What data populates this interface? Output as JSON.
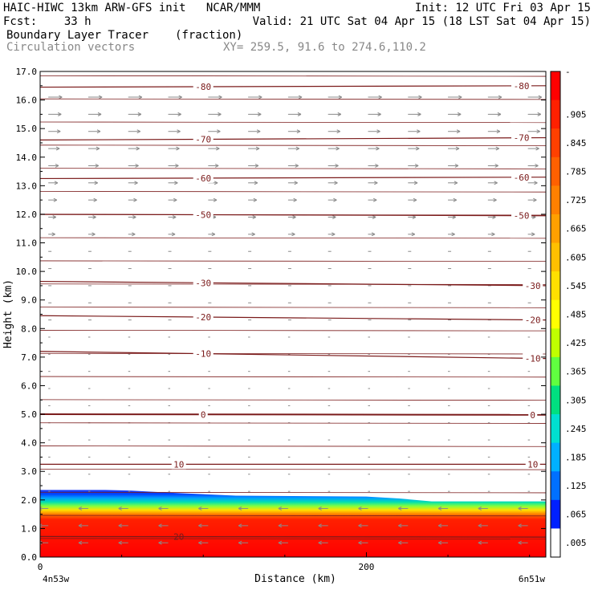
{
  "header": {
    "line1_left": "HAIC-HIWC 13km ARW-GFS init   NCAR/MMM",
    "line1_right": "Init: 12 UTC Fri 03 Apr 15",
    "line2_left": "Fcst:    33 h",
    "line2_right": "Valid: 21 UTC Sat 04 Apr 15 (18 LST Sat 04 Apr 15)",
    "field_name": "Boundary Layer Tracer",
    "field_units": "(fraction)",
    "vector_label": "Circulation vectors",
    "cross_section": "XY= 259.5, 91.6 to 274.6,110.2"
  },
  "chart_data": {
    "type": "heatmap",
    "xlabel": "Distance (km)",
    "ylabel": "Height (km)",
    "xlim": [
      0,
      310
    ],
    "ylim": [
      0,
      17
    ],
    "x_ticks": [
      {
        "value": 0,
        "label": "0"
      },
      {
        "value": 200,
        "label": "200"
      }
    ],
    "x_endpoint_labels": {
      "left": "4n53w",
      "right": "6n51w"
    },
    "y_ticks": [
      "0.0",
      "1.0",
      "2.0",
      "3.0",
      "4.0",
      "5.0",
      "6.0",
      "7.0",
      "8.0",
      "9.0",
      "10.0",
      "11.0",
      "12.0",
      "13.0",
      "14.0",
      "15.0",
      "16.0",
      "17.0"
    ],
    "colorbar": {
      "labels": [
        "-",
        ".905",
        ".845",
        ".785",
        ".725",
        ".665",
        ".605",
        ".545",
        ".485",
        ".425",
        ".365",
        ".305",
        ".245",
        ".185",
        ".125",
        ".065",
        ".005"
      ],
      "colors": [
        "#ff0000",
        "#ff2000",
        "#ff4000",
        "#ff6000",
        "#ff8000",
        "#ffa000",
        "#ffc000",
        "#ffe000",
        "#ffff00",
        "#c0ff00",
        "#60ff40",
        "#00e080",
        "#00e0d0",
        "#00b0ff",
        "#0070ff",
        "#0020ff",
        "#ffffff"
      ]
    },
    "tracer_top_km": [
      {
        "x": 0,
        "z": 2.35
      },
      {
        "x": 40,
        "z": 2.35
      },
      {
        "x": 55,
        "z": 2.33
      },
      {
        "x": 80,
        "z": 2.25
      },
      {
        "x": 120,
        "z": 2.15
      },
      {
        "x": 200,
        "z": 2.12
      },
      {
        "x": 220,
        "z": 2.05
      },
      {
        "x": 240,
        "z": 1.95
      },
      {
        "x": 310,
        "z": 1.95
      }
    ],
    "temperature_isotherms": [
      {
        "label": "-80",
        "z_left": 16.45,
        "z_right": 16.5,
        "label_x": [
          100,
          295
        ]
      },
      {
        "label": "-70",
        "z_left": 14.6,
        "z_right": 14.68,
        "label_x": [
          100,
          295
        ]
      },
      {
        "label": "-60",
        "z_left": 13.25,
        "z_right": 13.3,
        "label_x": [
          100,
          295
        ]
      },
      {
        "label": "-50",
        "z_left": 12.0,
        "z_right": 11.95,
        "label_x": [
          100,
          295
        ]
      },
      {
        "label": "-30",
        "z_left": 9.65,
        "z_right": 9.5,
        "label_x": [
          100,
          302
        ]
      },
      {
        "label": "-20",
        "z_left": 8.45,
        "z_right": 8.3,
        "label_x": [
          100,
          302
        ]
      },
      {
        "label": "-10",
        "z_left": 7.2,
        "z_right": 6.95,
        "label_x": [
          100,
          302
        ]
      },
      {
        "label": "0",
        "z_left": 5.0,
        "z_right": 4.98,
        "label_x": [
          100,
          302
        ]
      },
      {
        "label": "10",
        "z_left": 3.25,
        "z_right": 3.25,
        "label_x": [
          85,
          302
        ]
      },
      {
        "label": "20",
        "z_left": 0.72,
        "z_right": 0.7,
        "label_x": [
          85
        ]
      }
    ]
  }
}
